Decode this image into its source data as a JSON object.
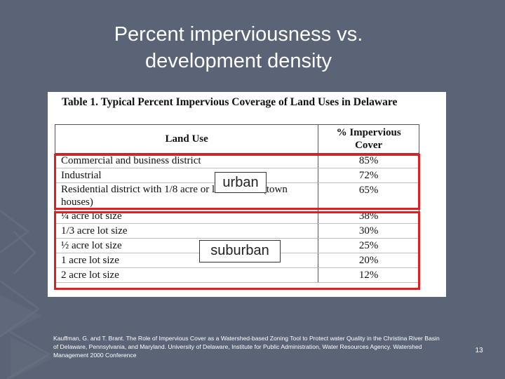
{
  "slide": {
    "title_line1": "Percent imperviousness vs.",
    "title_line2": "development density",
    "number": "13"
  },
  "table": {
    "caption": "Table 1. Typical Percent Impervious Coverage of Land Uses in Delaware",
    "headers": {
      "land_use": "Land Use",
      "impervious_line1": "% Impervious",
      "impervious_line2": "Cover"
    },
    "rows": [
      {
        "land_use": "Commercial and business district",
        "percent": "85%"
      },
      {
        "land_use": "Industrial",
        "percent": "72%"
      },
      {
        "land_use": "Residential district with 1/8 acre or less lot size (town houses)",
        "percent": "65%"
      },
      {
        "land_use": "¼ acre lot size",
        "percent": "38%"
      },
      {
        "land_use": "1/3 acre lot size",
        "percent": "30%"
      },
      {
        "land_use": "½ acre lot size",
        "percent": "25%"
      },
      {
        "land_use": "1 acre lot size",
        "percent": "20%"
      },
      {
        "land_use": "2 acre lot size",
        "percent": "12%"
      }
    ]
  },
  "groups": {
    "urban": "urban",
    "suburban": "suburban"
  },
  "colors": {
    "background": "#5a6476",
    "highlight": "#e02020"
  },
  "citation": "Kauffman, G. and T. Brant. The Role of Impervious Cover as a Watershed-based Zoning Tool to Protect water Quality in the Christina River Basin of Delaware, Pennsylvania, and Maryland. University of Delaware, Institute for Public Administration, Water Resources Agency. Watershed Management 2000 Conference"
}
